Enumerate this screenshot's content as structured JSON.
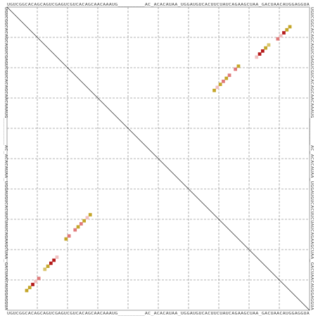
{
  "sequence": {
    "top": "UGUCGGCACAGCAGUCGAGUCGUCACAGCAACAAAUG_________AC_ACACAUAA_UGGAUGUCACUUCUAUCAGAAGCUAA_GACUAACAUGGAGGUA",
    "bottom": "UGUCGGCACAGCAGUCGAGUCGUCACAGCAACAAAUG_________AC_ACACAUAA_UGGAUGUCACUUCUAUCAGAAGCUAA_GACUAACAUGGAGGUA",
    "left": "UGUCGGCACAGCAGUCGAGUCGUCACAGCAACAAAUG_________AC_ACACAUAA_UGGAUGUCACUUCUAUCAGAAGCUAA_GACUAACAUGGAGGUA",
    "right": "UGUCGGCACAGCAGUCGAGUCGUCACAGCAACAAAUG_________AC_ACACAUAA_UGGAUGUCACUUCUAUCAGAAGCUAA_GACUAACAUGGAGGUA"
  },
  "colors": {
    "strong": "#b51a1a",
    "medium": "#e07a7a",
    "weak": "#f0c0c0",
    "olive": "#c4a528",
    "olive_light": "#d8c46a",
    "grid": "#9a9a9a",
    "diagonal": "#222222"
  },
  "chart_data": {
    "type": "heatmap",
    "sequence_length": 100,
    "grid_every": 10,
    "pairs": [
      {
        "i": 6,
        "j": 93,
        "level": "olive"
      },
      {
        "i": 7,
        "j": 92,
        "level": "olive"
      },
      {
        "i": 8,
        "j": 91,
        "level": "strong"
      },
      {
        "i": 9,
        "j": 90,
        "level": "weak"
      },
      {
        "i": 10,
        "j": 89,
        "level": "medium"
      },
      {
        "i": 12,
        "j": 86,
        "level": "olive_light"
      },
      {
        "i": 13,
        "j": 85,
        "level": "olive"
      },
      {
        "i": 14,
        "j": 84,
        "level": "strong"
      },
      {
        "i": 15,
        "j": 83,
        "level": "strong"
      },
      {
        "i": 16,
        "j": 82,
        "level": "weak"
      },
      {
        "i": 19,
        "j": 76,
        "level": "olive"
      },
      {
        "i": 20,
        "j": 75,
        "level": "medium"
      },
      {
        "i": 22,
        "j": 73,
        "level": "medium"
      },
      {
        "i": 23,
        "j": 72,
        "level": "olive"
      },
      {
        "i": 24,
        "j": 71,
        "level": "medium"
      },
      {
        "i": 25,
        "j": 70,
        "level": "olive"
      },
      {
        "i": 26,
        "j": 69,
        "level": "weak"
      },
      {
        "i": 27,
        "j": 68,
        "level": "olive"
      }
    ]
  }
}
